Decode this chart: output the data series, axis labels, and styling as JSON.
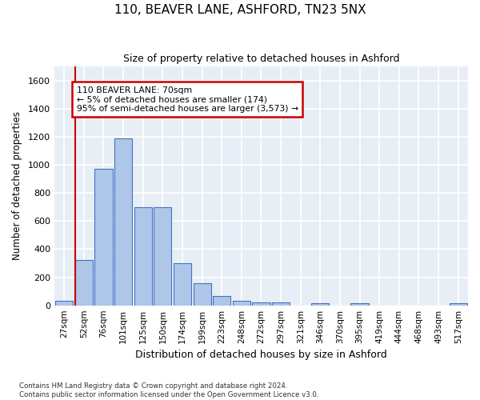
{
  "title": "110, BEAVER LANE, ASHFORD, TN23 5NX",
  "subtitle": "Size of property relative to detached houses in Ashford",
  "xlabel": "Distribution of detached houses by size in Ashford",
  "ylabel": "Number of detached properties",
  "categories": [
    "27sqm",
    "52sqm",
    "76sqm",
    "101sqm",
    "125sqm",
    "150sqm",
    "174sqm",
    "199sqm",
    "223sqm",
    "248sqm",
    "272sqm",
    "297sqm",
    "321sqm",
    "346sqm",
    "370sqm",
    "395sqm",
    "419sqm",
    "444sqm",
    "468sqm",
    "493sqm",
    "517sqm"
  ],
  "bar_values": [
    30,
    320,
    970,
    1190,
    700,
    700,
    300,
    155,
    65,
    30,
    20,
    20,
    0,
    15,
    0,
    15,
    0,
    0,
    0,
    0,
    15
  ],
  "bar_color": "#aec6e8",
  "bar_edge_color": "#4472c4",
  "annotation_text_title": "110 BEAVER LANE: 70sqm",
  "annotation_text_line2": "← 5% of detached houses are smaller (174)",
  "annotation_text_line3": "95% of semi-detached houses are larger (3,573) →",
  "annotation_box_color": "#cc0000",
  "vline_color": "#cc0000",
  "ylim": [
    0,
    1700
  ],
  "yticks": [
    0,
    200,
    400,
    600,
    800,
    1000,
    1200,
    1400,
    1600
  ],
  "bg_color": "#e8eef5",
  "grid_color": "#ffffff",
  "footer_line1": "Contains HM Land Registry data © Crown copyright and database right 2024.",
  "footer_line2": "Contains public sector information licensed under the Open Government Licence v3.0."
}
